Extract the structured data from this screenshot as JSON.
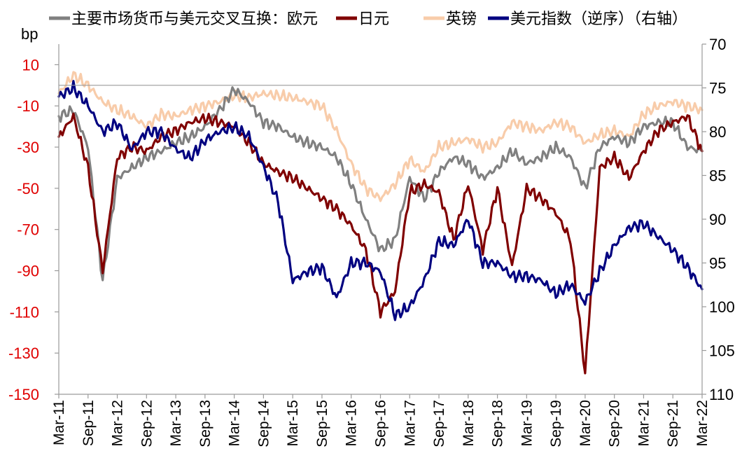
{
  "chart_data": {
    "type": "line",
    "title": "",
    "legend": {
      "placement": "top",
      "entries": [
        {
          "label": "主要市场货币与美元交叉互换：欧元",
          "color": "#808080"
        },
        {
          "label": "日元",
          "color": "#800000"
        },
        {
          "label": "英镑",
          "color": "#f8ccaa"
        },
        {
          "label": "美元指数（逆序）（右轴）",
          "color": "#000080"
        }
      ]
    },
    "left_axis": {
      "unit": "bp",
      "ylim": [
        -150,
        20
      ],
      "ticks": [
        "10",
        "-10",
        "-30",
        "-50",
        "-70",
        "-90",
        "-110",
        "-130",
        "-150"
      ],
      "color": "#e00000"
    },
    "right_axis": {
      "ylim": [
        70,
        110
      ],
      "inverted": true,
      "ticks": [
        "70",
        "75",
        "80",
        "85",
        "90",
        "95",
        "100",
        "105",
        "110"
      ]
    },
    "x_axis": {
      "range": [
        "2011-03",
        "2022-03"
      ],
      "ticks": [
        "Mar-11",
        "Sep-11",
        "Mar-12",
        "Sep-12",
        "Mar-13",
        "Sep-13",
        "Mar-14",
        "Sep-14",
        "Mar-15",
        "Sep-15",
        "Mar-16",
        "Sep-16",
        "Mar-17",
        "Sep-17",
        "Mar-18",
        "Sep-18",
        "Mar-19",
        "Sep-19",
        "Mar-20",
        "Sep-20",
        "Mar-21",
        "Sep-21",
        "Mar-22"
      ]
    },
    "grid": false,
    "series": [
      {
        "name": "英镑",
        "axis": "left",
        "color": "#f8ccaa",
        "x": [
          "2011-03",
          "2011-06",
          "2011-09",
          "2011-12",
          "2012-03",
          "2012-06",
          "2012-09",
          "2012-12",
          "2013-03",
          "2013-06",
          "2013-09",
          "2013-12",
          "2014-03",
          "2014-06",
          "2014-09",
          "2014-12",
          "2015-03",
          "2015-06",
          "2015-09",
          "2015-12",
          "2016-03",
          "2016-06",
          "2016-09",
          "2016-12",
          "2017-03",
          "2017-06",
          "2017-09",
          "2017-12",
          "2018-03",
          "2018-06",
          "2018-09",
          "2018-12",
          "2019-03",
          "2019-06",
          "2019-09",
          "2019-12",
          "2020-03",
          "2020-06",
          "2020-09",
          "2020-12",
          "2021-03",
          "2021-06",
          "2021-09",
          "2021-12",
          "2022-03"
        ],
        "y": [
          -4,
          5,
          0,
          -8,
          -12,
          -15,
          -20,
          -14,
          -15,
          -12,
          -10,
          -8,
          -5,
          -6,
          -4,
          -5,
          -6,
          -8,
          -10,
          -22,
          -38,
          -50,
          -55,
          -48,
          -36,
          -42,
          -30,
          -28,
          -26,
          -30,
          -28,
          -18,
          -20,
          -22,
          -18,
          -20,
          -28,
          -24,
          -22,
          -25,
          -14,
          -10,
          -8,
          -10,
          -12
        ]
      },
      {
        "name": "主要市场货币与美元交叉互换：欧元",
        "axis": "left",
        "color": "#808080",
        "x": [
          "2011-03",
          "2011-06",
          "2011-09",
          "2011-12",
          "2012-03",
          "2012-06",
          "2012-09",
          "2012-12",
          "2013-03",
          "2013-06",
          "2013-09",
          "2013-12",
          "2014-03",
          "2014-06",
          "2014-09",
          "2014-12",
          "2015-03",
          "2015-06",
          "2015-09",
          "2015-12",
          "2016-03",
          "2016-06",
          "2016-09",
          "2016-12",
          "2017-03",
          "2017-06",
          "2017-09",
          "2017-12",
          "2018-03",
          "2018-06",
          "2018-09",
          "2018-12",
          "2019-03",
          "2019-06",
          "2019-09",
          "2019-12",
          "2020-03",
          "2020-06",
          "2020-09",
          "2020-12",
          "2021-03",
          "2021-06",
          "2021-09",
          "2021-12",
          "2022-03"
        ],
        "y": [
          -15,
          -12,
          -30,
          -95,
          -45,
          -40,
          -35,
          -32,
          -28,
          -25,
          -20,
          -12,
          -2,
          -8,
          -18,
          -20,
          -25,
          -28,
          -30,
          -35,
          -48,
          -65,
          -80,
          -75,
          -45,
          -55,
          -42,
          -35,
          -38,
          -45,
          -40,
          -32,
          -38,
          -35,
          -30,
          -35,
          -50,
          -30,
          -25,
          -28,
          -20,
          -18,
          -18,
          -30,
          -32
        ]
      },
      {
        "name": "日元",
        "axis": "left",
        "color": "#800000",
        "x": [
          "2011-03",
          "2011-06",
          "2011-09",
          "2011-12",
          "2012-03",
          "2012-06",
          "2012-09",
          "2012-12",
          "2013-03",
          "2013-06",
          "2013-09",
          "2013-12",
          "2014-03",
          "2014-06",
          "2014-09",
          "2014-12",
          "2015-03",
          "2015-06",
          "2015-09",
          "2015-12",
          "2016-03",
          "2016-06",
          "2016-09",
          "2016-12",
          "2017-03",
          "2017-06",
          "2017-09",
          "2017-12",
          "2018-03",
          "2018-06",
          "2018-09",
          "2018-12",
          "2019-03",
          "2019-06",
          "2019-09",
          "2019-12",
          "2020-03",
          "2020-06",
          "2020-09",
          "2020-12",
          "2021-03",
          "2021-06",
          "2021-09",
          "2021-12",
          "2022-03"
        ],
        "y": [
          -25,
          -15,
          -40,
          -90,
          -35,
          -30,
          -32,
          -25,
          -22,
          -18,
          -16,
          -18,
          -20,
          -28,
          -38,
          -42,
          -45,
          -50,
          -55,
          -60,
          -68,
          -80,
          -110,
          -100,
          -52,
          -48,
          -52,
          -75,
          -48,
          -80,
          -50,
          -88,
          -50,
          -55,
          -62,
          -75,
          -140,
          -40,
          -35,
          -45,
          -32,
          -22,
          -18,
          -15,
          -32
        ]
      },
      {
        "name": "美元指数（逆序）（右轴）",
        "axis": "right",
        "color": "#000080",
        "x": [
          "2011-03",
          "2011-06",
          "2011-09",
          "2011-12",
          "2012-03",
          "2012-06",
          "2012-09",
          "2012-12",
          "2013-03",
          "2013-06",
          "2013-09",
          "2013-12",
          "2014-03",
          "2014-06",
          "2014-09",
          "2014-12",
          "2015-03",
          "2015-06",
          "2015-09",
          "2015-12",
          "2016-03",
          "2016-06",
          "2016-09",
          "2016-12",
          "2017-03",
          "2017-06",
          "2017-09",
          "2017-12",
          "2018-03",
          "2018-06",
          "2018-09",
          "2018-12",
          "2019-03",
          "2019-06",
          "2019-09",
          "2019-12",
          "2020-03",
          "2020-06",
          "2020-09",
          "2020-12",
          "2021-03",
          "2021-06",
          "2021-09",
          "2021-12",
          "2022-03"
        ],
        "y": [
          76,
          75,
          77,
          80,
          79,
          82,
          80,
          80,
          82,
          83,
          81,
          80,
          79.5,
          80.5,
          84,
          88,
          97,
          96,
          95.5,
          99,
          95,
          95,
          96,
          101,
          100,
          97,
          92.5,
          93,
          90,
          95,
          95,
          96.5,
          96.5,
          97,
          98.5,
          97.5,
          99.5,
          96,
          93,
          91,
          90.5,
          92,
          93.5,
          95.5,
          98
        ]
      }
    ]
  }
}
